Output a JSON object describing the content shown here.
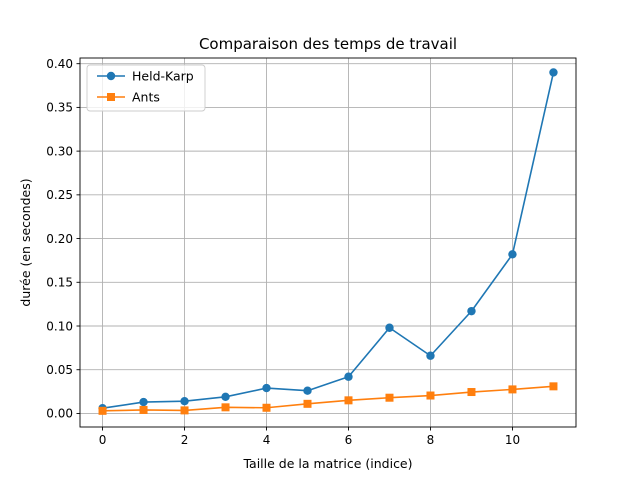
{
  "chart_data": {
    "type": "line",
    "title": "Comparaison des temps de travail",
    "xlabel": "Taille de la matrice (indice)",
    "ylabel": "durée (en secondes)",
    "xlim": [
      -0.55,
      11.55
    ],
    "ylim": [
      -0.0155,
      0.4065
    ],
    "xticks": [
      0,
      2,
      4,
      6,
      8,
      10
    ],
    "yticks": [
      0.0,
      0.05,
      0.1,
      0.15,
      0.2,
      0.25,
      0.3,
      0.35,
      0.4
    ],
    "ytick_labels": [
      "0.00",
      "0.05",
      "0.10",
      "0.15",
      "0.20",
      "0.25",
      "0.30",
      "0.35",
      "0.40"
    ],
    "grid": true,
    "legend_position": "top-left",
    "x": [
      0,
      1,
      2,
      3,
      4,
      5,
      6,
      7,
      8,
      9,
      10,
      11
    ],
    "series": [
      {
        "name": "Held-Karp",
        "marker": "circle",
        "color": "#1f77b4",
        "values": [
          0.006,
          0.013,
          0.014,
          0.019,
          0.029,
          0.026,
          0.042,
          0.098,
          0.066,
          0.117,
          0.182,
          0.39
        ]
      },
      {
        "name": "Ants",
        "marker": "square",
        "color": "#ff7f0e",
        "values": [
          0.003,
          0.004,
          0.0035,
          0.007,
          0.0065,
          0.011,
          0.015,
          0.018,
          0.0205,
          0.0245,
          0.0275,
          0.031
        ]
      }
    ]
  }
}
